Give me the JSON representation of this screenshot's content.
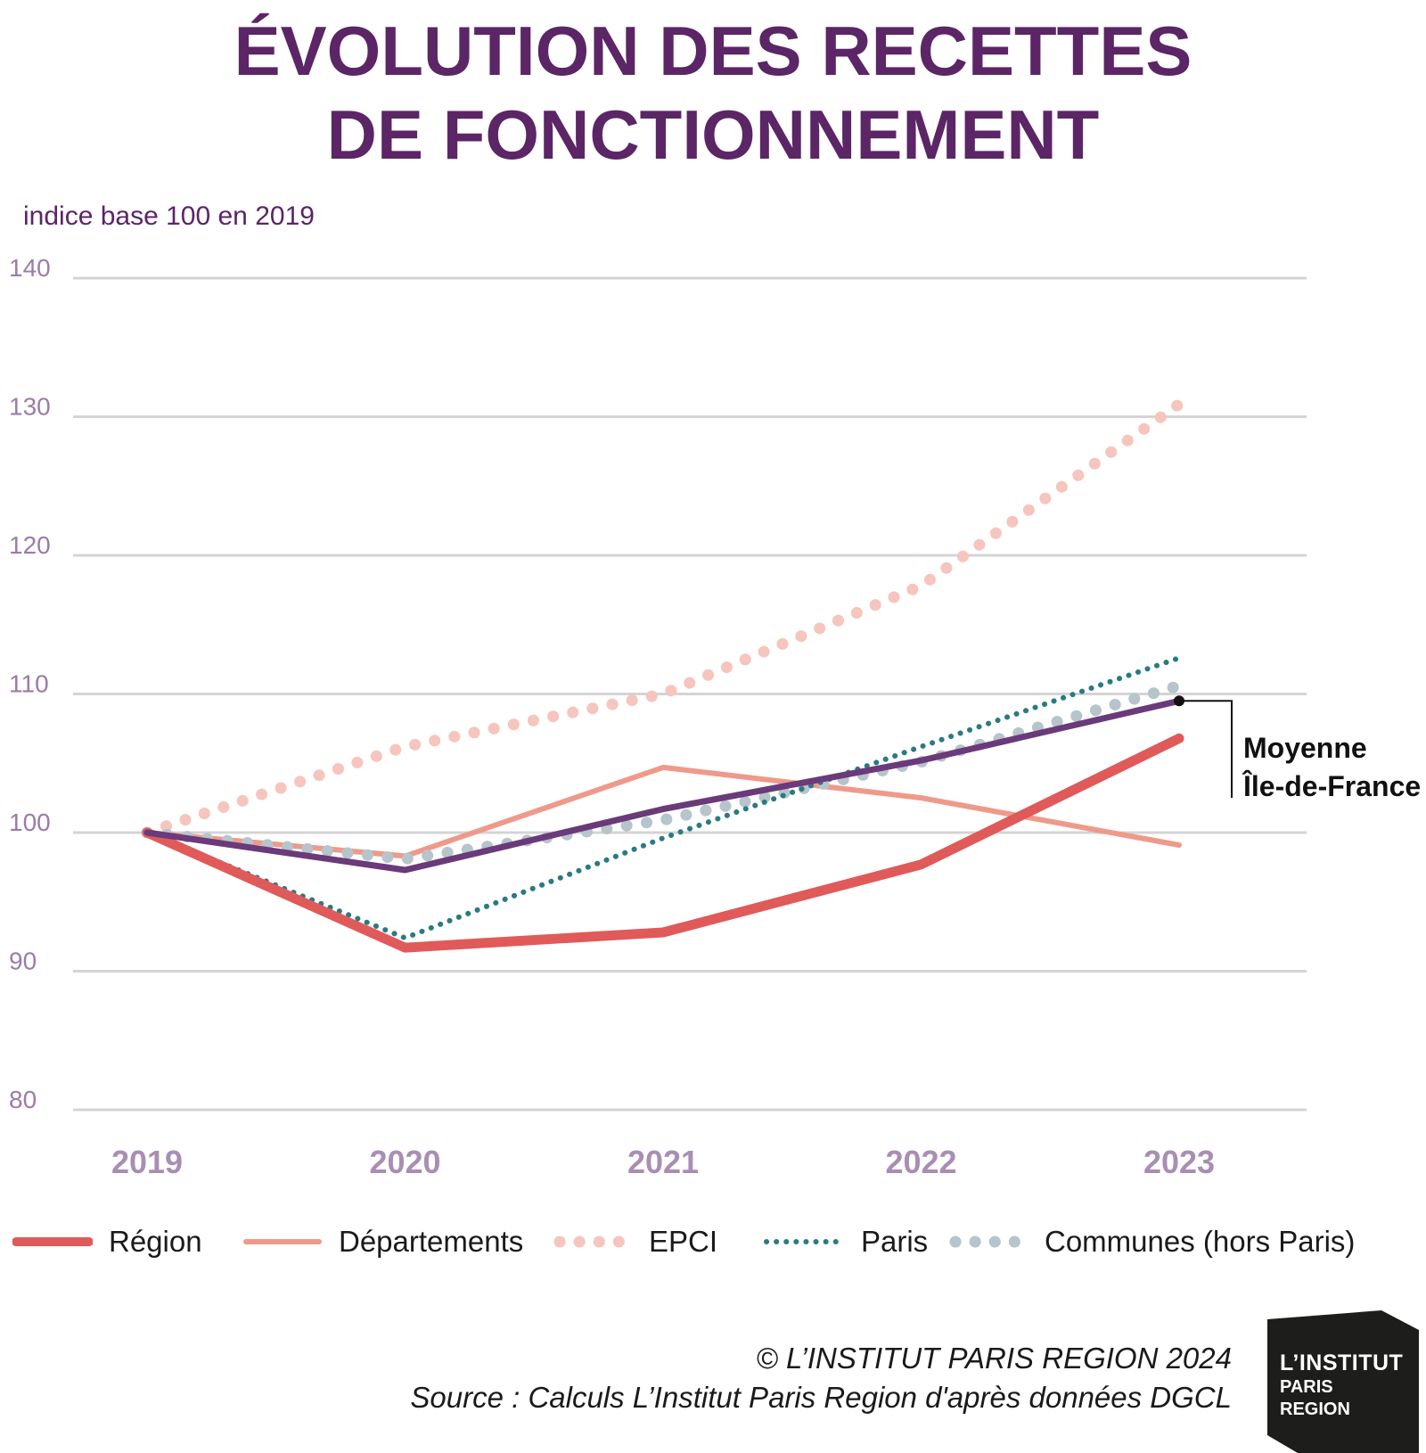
{
  "title_line1": "ÉVOLUTION DES RECETTES",
  "title_line2": "DE FONCTIONNEMENT",
  "subtitle": "indice base 100 en 2019",
  "annotation": {
    "line1": "Moyenne",
    "line2": "Île-de-France"
  },
  "footer": {
    "copyright": "© L’INSTITUT PARIS REGION 2024",
    "source": "Source : Calculs L’Institut Paris Region d'après données DGCL"
  },
  "logo": {
    "line1": "L’INSTITUT",
    "line2": "PARIS",
    "line3": "REGION"
  },
  "legend": [
    "Région",
    "Départements",
    "EPCI",
    "Paris",
    "Communes (hors Paris)"
  ],
  "colors": {
    "title": "#5b2566",
    "region": "#e05a5a",
    "departements": "#ee9a8a",
    "epci": "#f6c5bd",
    "paris": "#2b7a82",
    "communes": "#b6c4cc",
    "moyenne": "#6b3a7a",
    "grid": "#d4d4d4"
  },
  "chart_data": {
    "type": "line",
    "title": "ÉVOLUTION DES RECETTES DE FONCTIONNEMENT",
    "ylabel": "indice base 100 en 2019",
    "x": [
      "2019",
      "2020",
      "2021",
      "2022",
      "2023"
    ],
    "ylim": [
      80,
      140
    ],
    "yticks": [
      80,
      90,
      100,
      110,
      120,
      130,
      140
    ],
    "grid": true,
    "legend_position": "bottom",
    "series": [
      {
        "name": "Région",
        "key": "region",
        "style": "thick-solid",
        "values": [
          100,
          91.7,
          92.8,
          97.7,
          106.8
        ]
      },
      {
        "name": "Départements",
        "key": "departements",
        "style": "solid",
        "values": [
          100,
          98.3,
          104.7,
          102.5,
          99.1
        ]
      },
      {
        "name": "EPCI",
        "key": "epci",
        "style": "dots-large",
        "values": [
          100,
          106.2,
          110.0,
          117.8,
          130.9
        ]
      },
      {
        "name": "Paris",
        "key": "paris",
        "style": "dots-small",
        "values": [
          100,
          92.4,
          99.6,
          106.2,
          112.6
        ]
      },
      {
        "name": "Communes (hors Paris)",
        "key": "communes",
        "style": "dots-large",
        "values": [
          100,
          98.1,
          100.9,
          105.1,
          110.6
        ]
      },
      {
        "name": "Moyenne Île-de-France",
        "key": "moyenne",
        "style": "solid-annotated",
        "values": [
          100,
          97.3,
          101.7,
          105.2,
          109.5
        ]
      }
    ]
  }
}
